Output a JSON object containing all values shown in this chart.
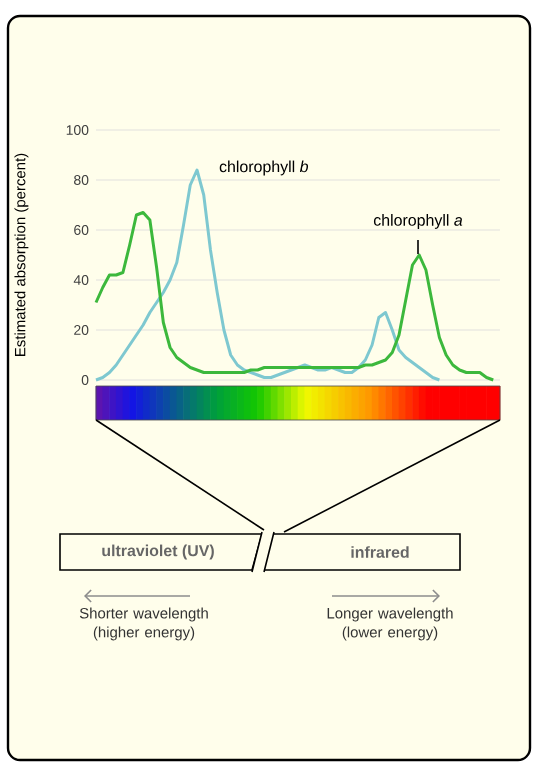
{
  "chart_data": {
    "type": "line",
    "ylabel": "Estimated absorption (percent)",
    "categories": [
      null,
      null,
      null,
      null,
      null,
      null,
      null,
      null,
      null,
      null,
      null,
      null,
      null,
      null,
      null,
      null,
      null,
      null,
      null,
      null,
      null,
      null,
      null,
      null,
      null,
      null,
      null,
      null,
      null,
      null,
      null,
      null,
      null,
      null,
      null,
      null,
      null,
      null,
      null,
      null,
      null,
      null,
      null,
      null,
      null,
      null,
      null,
      null,
      null,
      null,
      null,
      null,
      null,
      null,
      null,
      null,
      null,
      null,
      null,
      null,
      null
    ],
    "series": [
      {
        "name": "chlorophyll *b*",
        "color": "#7ec8d0",
        "values": [
          0,
          1,
          3,
          6,
          10,
          14,
          18,
          22,
          27,
          31,
          35,
          40,
          47,
          62,
          78,
          84,
          74,
          52,
          35,
          20,
          10,
          6,
          4,
          3,
          2,
          1,
          1,
          2,
          3,
          4,
          5,
          6,
          5,
          4,
          4,
          5,
          4,
          3,
          3,
          5,
          8,
          14,
          25,
          27,
          20,
          12,
          9,
          7,
          5,
          3,
          1,
          0,
          null,
          null,
          null,
          null,
          null,
          null,
          null,
          null,
          null
        ]
      },
      {
        "name": "chlorophyll *a*",
        "color": "#3cb83c",
        "values": [
          31,
          37,
          42,
          42,
          43,
          54,
          66,
          67,
          64,
          45,
          23,
          13,
          9,
          7,
          5,
          4,
          3,
          3,
          3,
          3,
          3,
          3,
          3,
          4,
          4,
          5,
          5,
          5,
          5,
          5,
          5,
          5,
          5,
          5,
          5,
          5,
          5,
          5,
          5,
          5,
          6,
          6,
          7,
          8,
          11,
          18,
          32,
          46,
          50,
          44,
          30,
          17,
          10,
          6,
          4,
          3,
          3,
          3,
          1,
          0,
          null
        ]
      }
    ],
    "ylim": [
      0,
      100
    ],
    "yticks": [
      0,
      20,
      40,
      60,
      80,
      100
    ],
    "grid": "y",
    "legend": false,
    "tick_labels": "y",
    "line_style": "solid",
    "annotations": [
      "ultraviolet (UV)",
      "infrared",
      "Shorter wavelength (higher energy)",
      "Longer wavelength (lower energy)"
    ]
  }
}
